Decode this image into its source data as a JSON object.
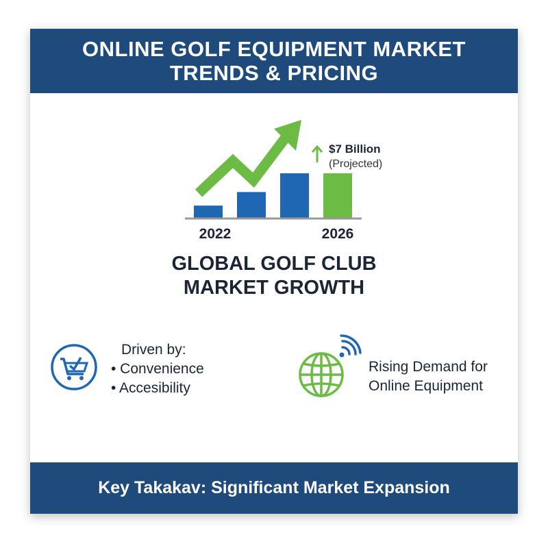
{
  "header": {
    "title_line1": "ONLINE GOLF EQUIPMENT MARKET",
    "title_line2": "TRENDS & PRICING"
  },
  "chart_data": {
    "type": "bar",
    "categories": [
      "2022",
      "",
      "",
      "2026"
    ],
    "values": [
      2.0,
      4.1,
      7,
      7
    ],
    "highlight_index": 3,
    "colors": {
      "bar": "#2067b3",
      "highlight": "#6cbb45",
      "trend_arrow": "#6cbb45",
      "axis": "#999999"
    },
    "annotation": {
      "value": "$7 Billion",
      "note": "(Projected)",
      "icon": "up-arrow-icon"
    },
    "trend": "upward-zigzag-arrow"
  },
  "subtitle": {
    "line1": "GLOBAL GOLF CLUB",
    "line2": "MARKET GROWTH"
  },
  "features": [
    {
      "icon": "shopping-cart-check-icon",
      "heading": "Driven by:",
      "bullets": [
        "• Convenience",
        "• Accesibility"
      ],
      "color": "#2067b3"
    },
    {
      "icon": "globe-wifi-icon",
      "line1": "Rising Demand for",
      "line2": "Online Equipment",
      "color": "#6cbb45"
    }
  ],
  "footer": {
    "text": "Key Takakav: Significant Market Expansion"
  }
}
